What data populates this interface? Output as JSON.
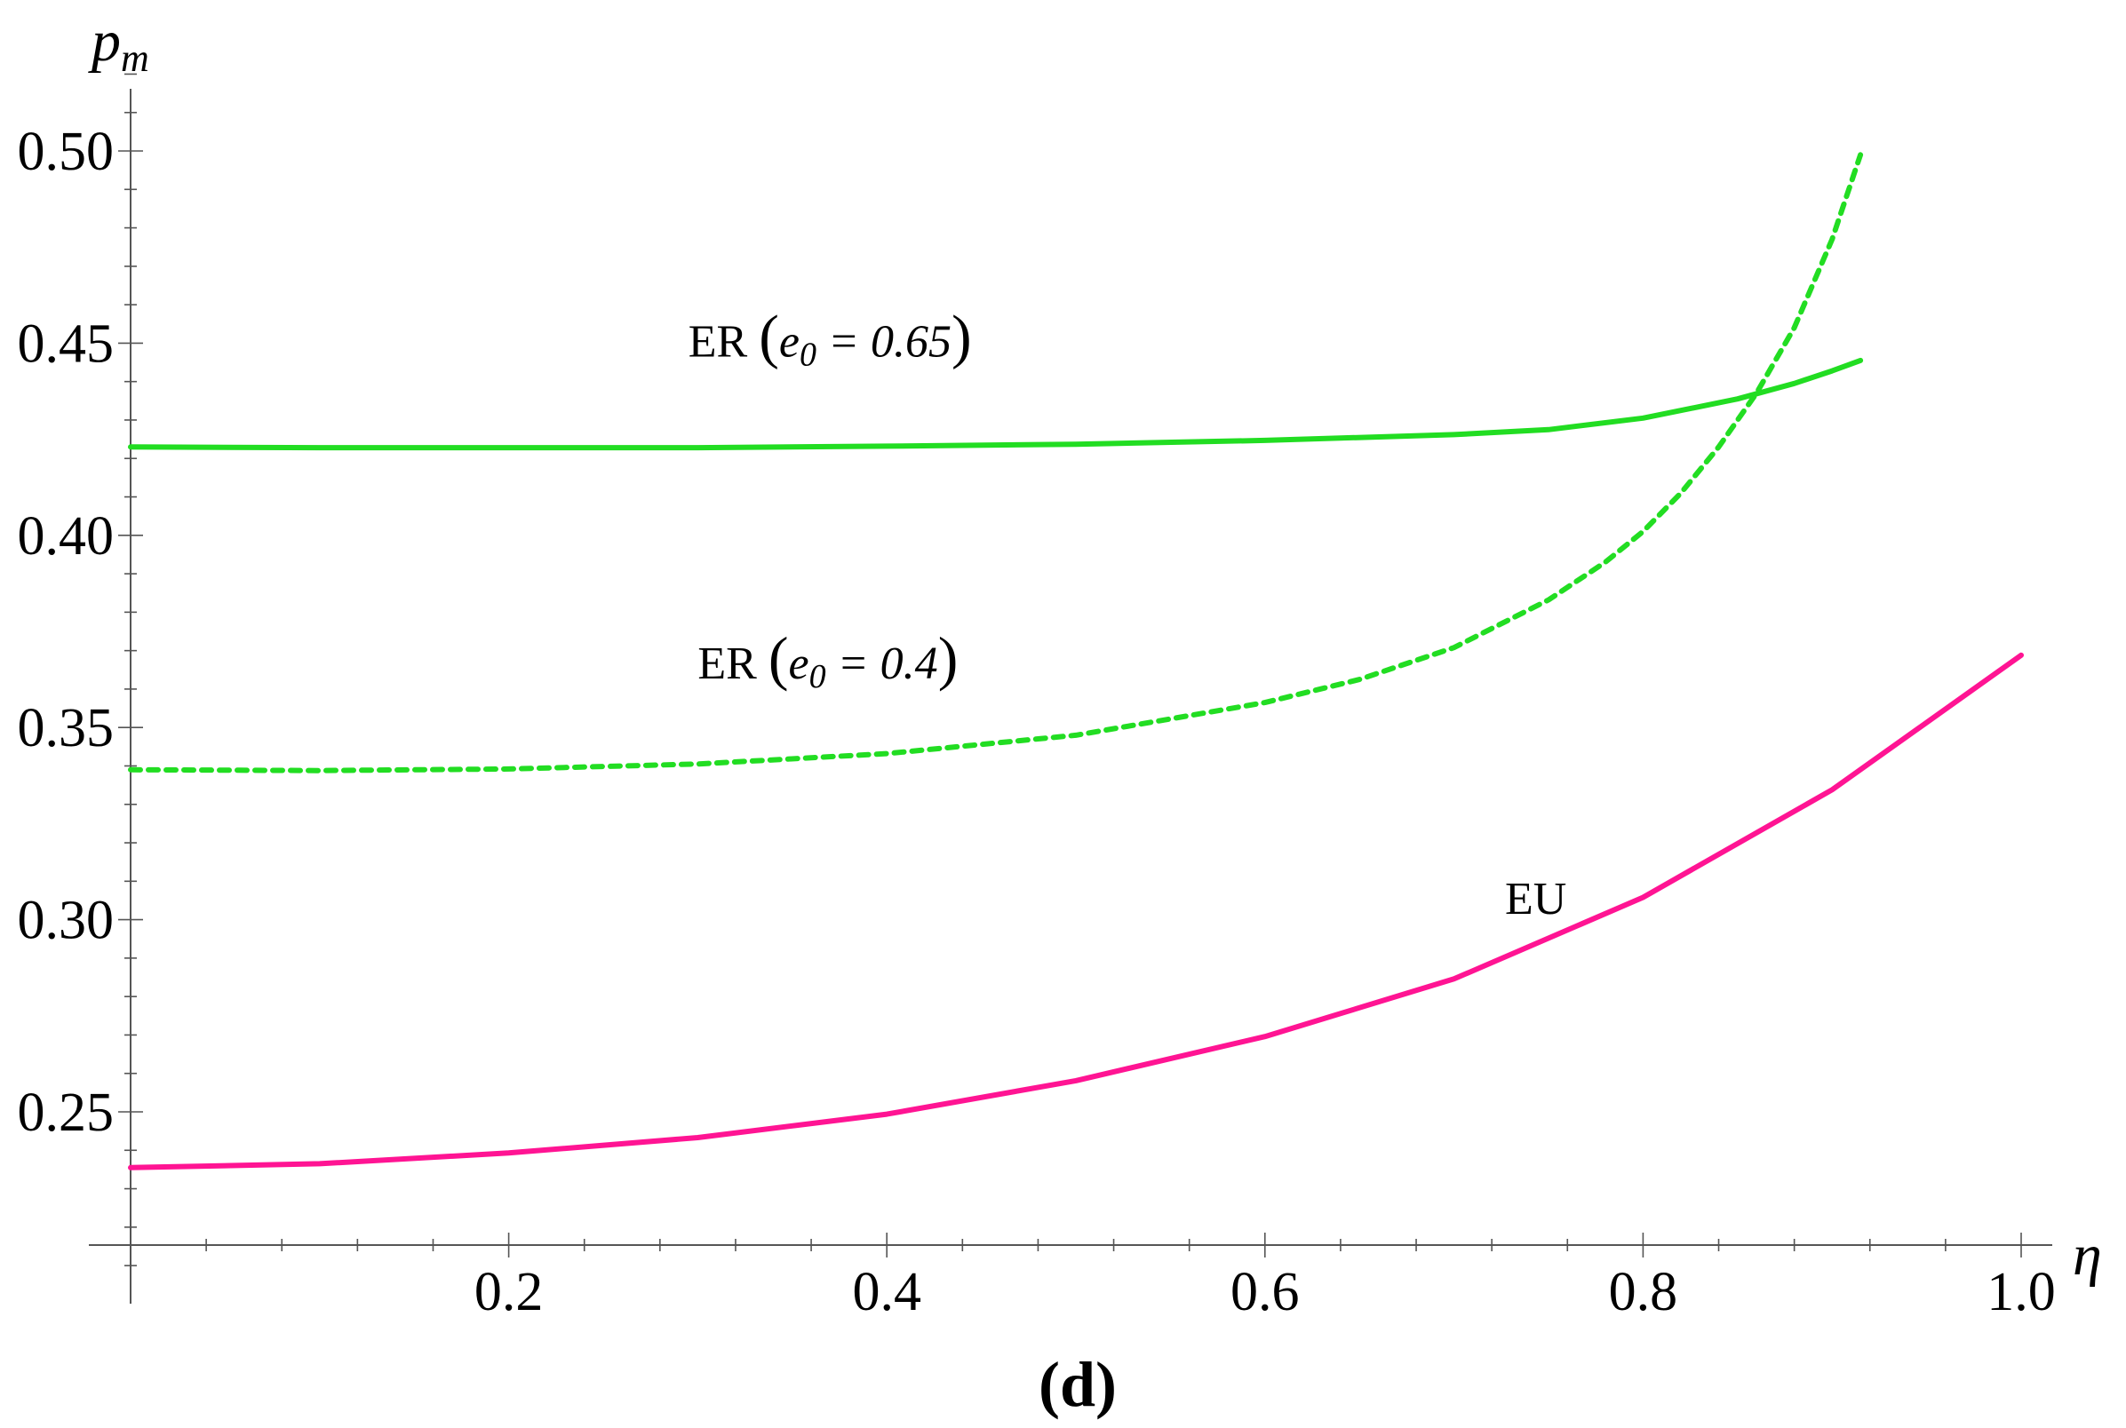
{
  "chart_data": {
    "type": "line",
    "xlabel": "η",
    "ylabel": "p",
    "ylabel_sub": "m",
    "xlim": [
      0,
      1.0
    ],
    "ylim": [
      0.2,
      0.5
    ],
    "x_ticks": [
      0.2,
      0.4,
      0.6,
      0.8,
      1.0
    ],
    "x_tick_labels": [
      "0.2",
      "0.4",
      "0.6",
      "0.8",
      "1.0"
    ],
    "y_ticks": [
      0.25,
      0.3,
      0.35,
      0.4,
      0.45,
      0.5
    ],
    "y_tick_labels": [
      "0.25",
      "0.30",
      "0.35",
      "0.40",
      "0.45",
      "0.50"
    ],
    "grid": false,
    "panel_label": "(d)",
    "series": [
      {
        "name": "ER (e0 = 0.65)",
        "color": "#22dd22",
        "dash": "solid",
        "x": [
          0,
          0.1,
          0.2,
          0.3,
          0.4,
          0.5,
          0.6,
          0.7,
          0.75,
          0.8,
          0.85,
          0.88,
          0.9,
          0.915
        ],
        "y": [
          0.423,
          0.4228,
          0.4228,
          0.4228,
          0.4232,
          0.4237,
          0.4247,
          0.4262,
          0.4275,
          0.4305,
          0.4355,
          0.4395,
          0.4428,
          0.4455
        ]
      },
      {
        "name": "ER (e0 = 0.4)",
        "color": "#22dd22",
        "dash": "dashed",
        "x": [
          0,
          0.1,
          0.2,
          0.3,
          0.4,
          0.5,
          0.6,
          0.65,
          0.7,
          0.75,
          0.78,
          0.8,
          0.82,
          0.84,
          0.86,
          0.88,
          0.9,
          0.915
        ],
        "y": [
          0.339,
          0.3388,
          0.3392,
          0.3405,
          0.3432,
          0.348,
          0.3565,
          0.3625,
          0.3708,
          0.3832,
          0.393,
          0.401,
          0.411,
          0.423,
          0.437,
          0.454,
          0.477,
          0.499
        ]
      },
      {
        "name": "EU",
        "color": "#ff1493",
        "dash": "solid",
        "x": [
          0,
          0.1,
          0.2,
          0.3,
          0.4,
          0.5,
          0.6,
          0.7,
          0.8,
          0.9,
          1.0
        ],
        "y": [
          0.2355,
          0.2365,
          0.2393,
          0.2433,
          0.2494,
          0.2581,
          0.2696,
          0.2846,
          0.3058,
          0.3338,
          0.3688
        ]
      }
    ],
    "annotations": [
      {
        "id": "er065",
        "prefix": "ER",
        "var": "e",
        "sub": "0",
        "rest": " = 0.65",
        "x": 0.295,
        "y": 0.4465
      },
      {
        "id": "er04",
        "prefix": "ER",
        "var": "e",
        "sub": "0",
        "rest": " = 0.4",
        "x": 0.3,
        "y": 0.3628
      },
      {
        "id": "eu",
        "text": "EU",
        "x": 0.727,
        "y": 0.3015
      }
    ]
  }
}
